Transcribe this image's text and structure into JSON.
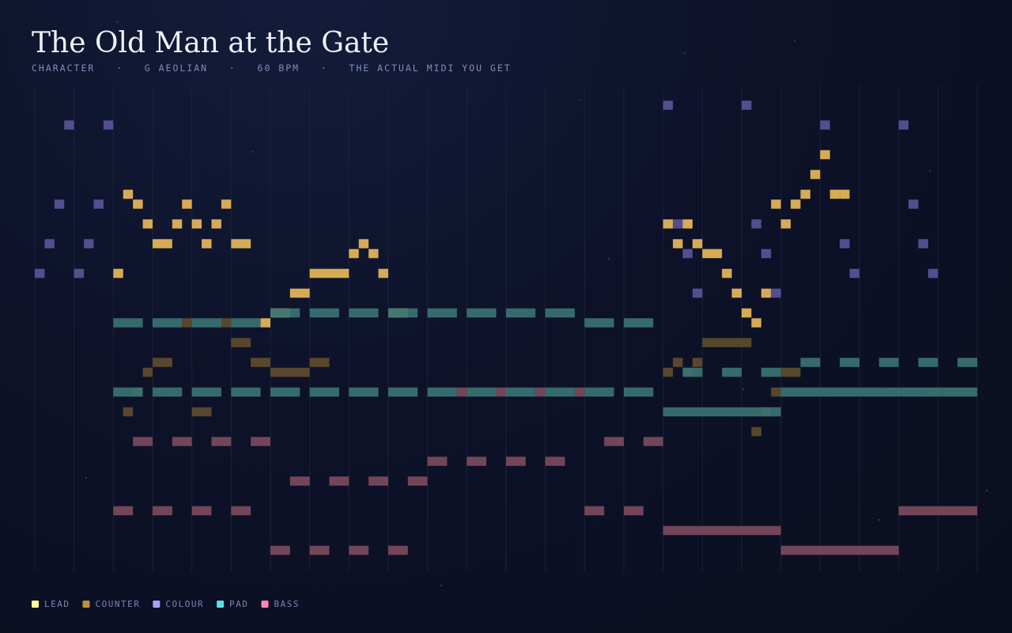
{
  "chart_data": {
    "type": "pianoroll",
    "title": "The Old Man at the Gate",
    "subtitle": "CHARACTER   ·   G AEOLIAN   ·   60 BPM   ·   THE ACTUAL MIDI YOU GET",
    "xlim": [
      0,
      96
    ],
    "xticks": [
      0,
      4,
      8,
      12,
      16,
      20,
      24,
      28,
      32,
      36,
      40,
      44,
      48,
      52,
      56,
      60,
      64,
      68,
      72,
      76,
      80,
      84,
      88,
      92,
      96
    ],
    "ylim": [
      38.5,
      84.5
    ],
    "grid": true,
    "series": [
      {
        "name": "LEAD",
        "color": "#e8b95a",
        "start": [
          8,
          9,
          10,
          11,
          12,
          15,
          14,
          16,
          17,
          18,
          19,
          20,
          23,
          24,
          26,
          28,
          32,
          33,
          34,
          35,
          36,
          64,
          66,
          65,
          67,
          68,
          70,
          71,
          72,
          73,
          74,
          75,
          76,
          77,
          78,
          79,
          80,
          81,
          82
        ],
        "duration": [
          1,
          1,
          1,
          1,
          2,
          1,
          1,
          1,
          1,
          1,
          1,
          2,
          1,
          2,
          2,
          4,
          1,
          1,
          1,
          1,
          2,
          1,
          1,
          1,
          1,
          2,
          1,
          1,
          1,
          1,
          1,
          1,
          1,
          1,
          1,
          1,
          1,
          1,
          1
        ],
        "pitch": [
          67,
          75,
          74,
          72,
          70,
          74,
          72,
          72,
          70,
          72,
          74,
          70,
          62,
          63,
          65,
          67,
          69,
          70,
          69,
          67,
          63,
          72,
          72,
          70,
          70,
          69,
          67,
          65,
          63,
          62,
          65,
          74,
          72,
          74,
          75,
          77,
          79,
          75,
          75
        ]
      },
      {
        "name": "COUNTER",
        "color": "#5e4c2c",
        "start": [
          11,
          12,
          15,
          19,
          20,
          22,
          24,
          28,
          9,
          16,
          10,
          64,
          65,
          66,
          67,
          68,
          73,
          74,
          75,
          76
        ],
        "duration": [
          1,
          2,
          1,
          1,
          2,
          2,
          4,
          2,
          1,
          2,
          1,
          1,
          1,
          1,
          1,
          5,
          1,
          1,
          1,
          2
        ],
        "pitch": [
          57,
          58,
          62,
          62,
          60,
          58,
          57,
          58,
          53,
          53,
          55,
          57,
          58,
          57,
          58,
          60,
          51,
          53,
          55,
          57
        ]
      },
      {
        "name": "COLOUR",
        "color": "#5a5499",
        "start": [
          0,
          1,
          2,
          3,
          4,
          5,
          6,
          7,
          64,
          65,
          66,
          67,
          72,
          73,
          74,
          75,
          80,
          82,
          83,
          88,
          89,
          90,
          91
        ],
        "duration": [
          1,
          1,
          1,
          1,
          1,
          1,
          1,
          1,
          1,
          1,
          1,
          1,
          1,
          1,
          1,
          1,
          1,
          1,
          1,
          1,
          1,
          1,
          1
        ],
        "pitch": [
          67,
          70,
          74,
          82,
          67,
          70,
          74,
          82,
          84,
          72,
          69,
          65,
          84,
          72,
          69,
          65,
          82,
          70,
          67,
          82,
          74,
          70,
          67
        ]
      },
      {
        "name": "PAD",
        "color": "#3a7373",
        "start": [
          8,
          12,
          16,
          20,
          56,
          60,
          24,
          28,
          32,
          36,
          40,
          44,
          48,
          52,
          8,
          12,
          16,
          20,
          24,
          28,
          32,
          36,
          40,
          44,
          48,
          52,
          56,
          60,
          76,
          64,
          66,
          70,
          74,
          78,
          82,
          86,
          90,
          94
        ],
        "duration": [
          3,
          3,
          3,
          3,
          3,
          3,
          3,
          3,
          3,
          3,
          3,
          3,
          3,
          3,
          3,
          3,
          3,
          3,
          3,
          3,
          3,
          3,
          3,
          3,
          3,
          3,
          3,
          3,
          20,
          12,
          2,
          2,
          2,
          2,
          2,
          2,
          2,
          2
        ],
        "pitch": [
          62,
          62,
          62,
          62,
          62,
          62,
          63,
          63,
          63,
          63,
          63,
          63,
          63,
          63,
          55,
          55,
          55,
          55,
          55,
          55,
          55,
          55,
          55,
          55,
          55,
          55,
          55,
          55,
          55,
          53,
          57,
          57,
          57,
          58,
          58,
          58,
          58,
          58
        ]
      },
      {
        "name": "BASS",
        "color": "#7c4a5d",
        "start": [
          8,
          12,
          16,
          20,
          56,
          60,
          88,
          10,
          14,
          18,
          22,
          58,
          62,
          24,
          28,
          32,
          36,
          76,
          26,
          30,
          34,
          38,
          40,
          44,
          48,
          52,
          64,
          43,
          47,
          51,
          55
        ],
        "duration": [
          2,
          2,
          2,
          2,
          2,
          2,
          8,
          2,
          2,
          2,
          2,
          2,
          2,
          2,
          2,
          2,
          2,
          12,
          2,
          2,
          2,
          2,
          2,
          2,
          2,
          2,
          12,
          1,
          1,
          1,
          1
        ],
        "pitch": [
          43,
          43,
          43,
          43,
          43,
          43,
          43,
          50,
          50,
          50,
          50,
          50,
          50,
          39,
          39,
          39,
          39,
          39,
          46,
          46,
          46,
          46,
          48,
          48,
          48,
          48,
          41,
          55,
          55,
          55,
          55
        ]
      }
    ]
  }
}
